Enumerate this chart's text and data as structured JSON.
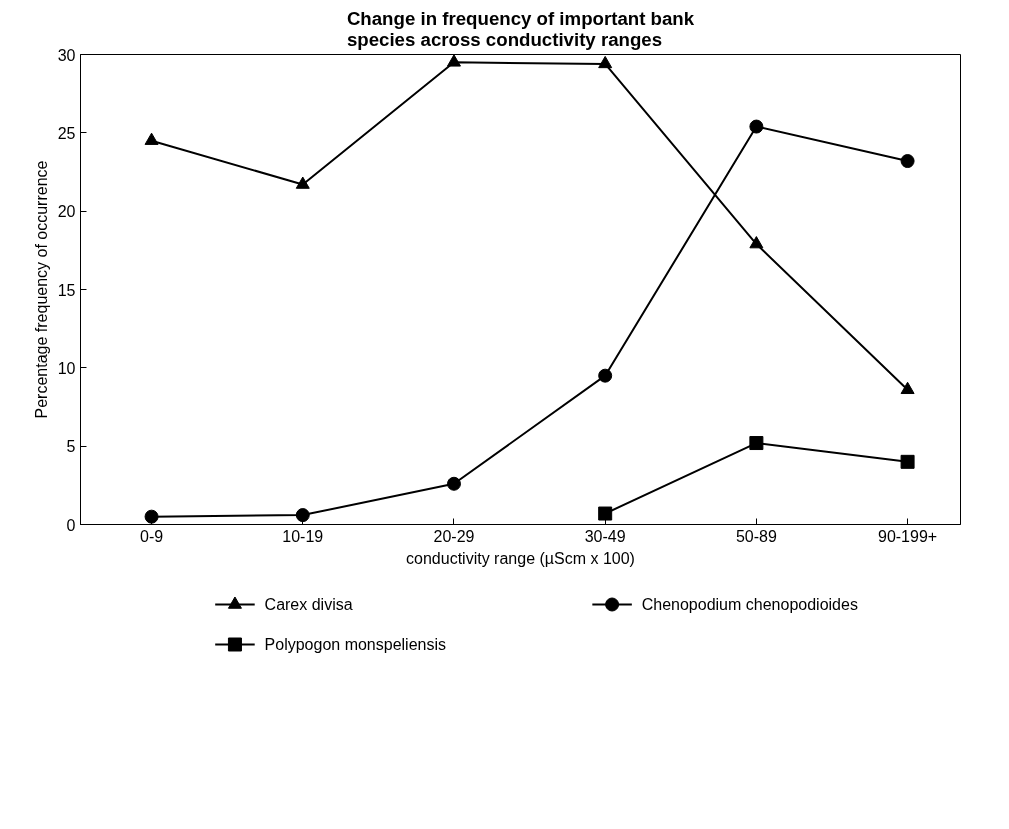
{
  "chart_data": {
    "type": "line",
    "title": "Change in frequency of important bank\nspecies across conductivity ranges",
    "xlabel": "conductivity range (µScm x 100)",
    "ylabel": "Percentage frequency of occurrence",
    "categories": [
      "0-9",
      "10-19",
      "20-29",
      "30-49",
      "50-89",
      "90-199+"
    ],
    "series": [
      {
        "name": "Carex divisa",
        "color": "#000000",
        "marker": "triangle",
        "values": [
          24.5,
          21.7,
          29.5,
          29.4,
          17.9,
          8.6
        ]
      },
      {
        "name": "Chenopodium chenopodioides",
        "color": "#000000",
        "marker": "circle",
        "values": [
          0.5,
          0.6,
          2.6,
          9.5,
          25.4,
          23.2
        ]
      },
      {
        "name": "Polypogon monspeliensis",
        "color": "#000000",
        "marker": "square",
        "values": [
          null,
          null,
          null,
          0.7,
          5.2,
          4.0
        ]
      }
    ],
    "ylim": [
      0,
      30
    ],
    "yticks": [
      0,
      5,
      10,
      15,
      20,
      25,
      30
    ],
    "grid": false,
    "legend": "bottom",
    "line_style": "solid"
  }
}
